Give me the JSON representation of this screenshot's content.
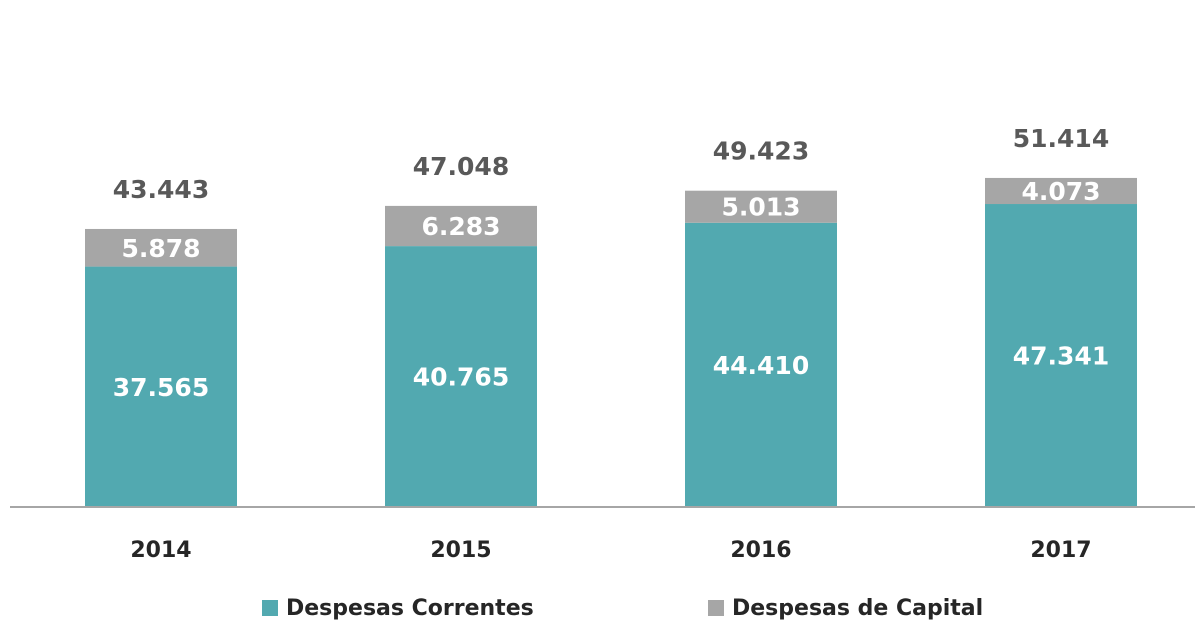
{
  "chart_data": {
    "type": "stacked_bar",
    "categories": [
      "2014",
      "2015",
      "2016",
      "2017"
    ],
    "series": [
      {
        "name": "Despesas Correntes",
        "color": "#52a9b0",
        "values": [
          37.565,
          40.765,
          44.41,
          47.341
        ],
        "value_labels": [
          "37.565",
          "40.765",
          "44.410",
          "47.341"
        ]
      },
      {
        "name": "Despesas de Capital",
        "color": "#a6a6a6",
        "values": [
          5.878,
          6.283,
          5.013,
          4.073
        ],
        "value_labels": [
          "5.878",
          "6.283",
          "5.013",
          "4.073"
        ]
      }
    ],
    "totals": [
      43.443,
      47.048,
      49.423,
      51.414
    ],
    "ylim": [
      0,
      60
    ],
    "legend": "bottom"
  }
}
